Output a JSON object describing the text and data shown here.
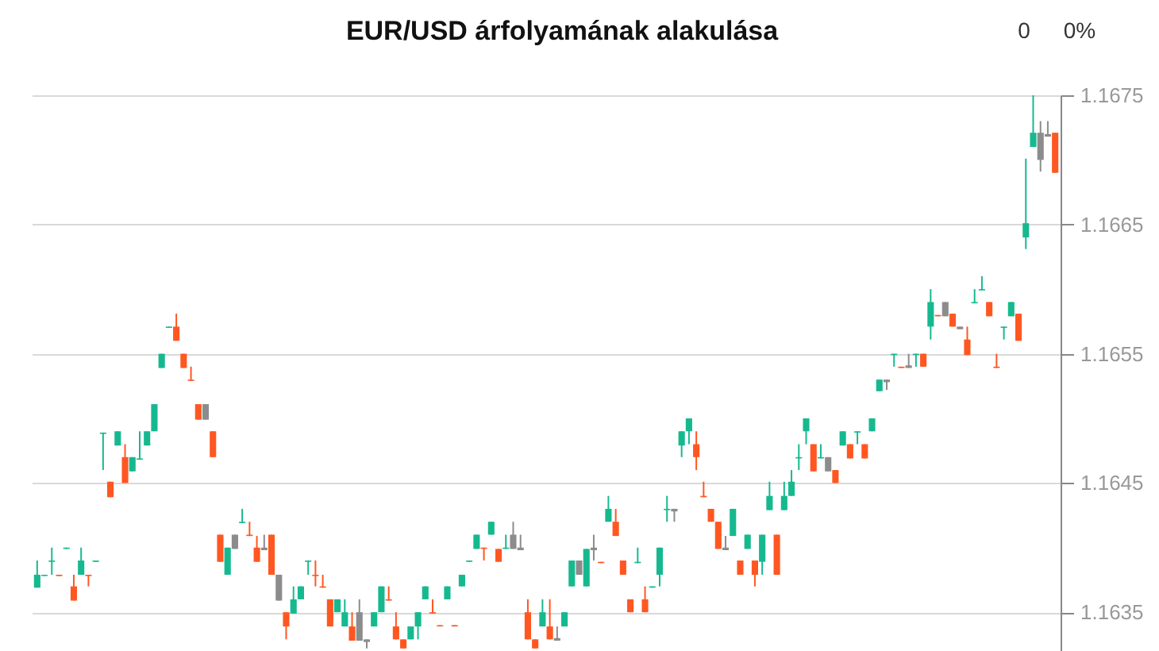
{
  "chart_data": {
    "type": "candlestick",
    "title": "EUR/USD árfolyamának alakulása",
    "annotations": [
      "0",
      "0%"
    ],
    "categories": [
      null,
      null,
      null,
      null,
      null,
      null,
      null,
      null,
      null,
      null,
      null,
      null,
      null,
      null,
      null,
      null,
      null,
      null,
      null,
      null,
      null,
      null,
      null,
      null,
      null,
      null,
      null,
      null,
      null,
      null,
      null,
      null,
      null,
      null,
      null,
      null,
      null,
      null,
      null,
      null,
      null,
      null,
      null,
      null,
      null,
      null,
      null,
      null,
      null,
      null,
      null,
      null,
      null,
      null,
      null,
      null,
      null,
      null,
      null,
      null,
      null,
      null,
      null,
      null,
      null,
      null,
      null,
      null,
      null,
      null,
      null,
      null,
      null,
      null,
      null,
      null,
      null,
      null,
      null,
      null,
      null,
      null,
      null,
      null,
      null,
      null,
      null,
      null,
      null,
      null,
      null,
      null,
      null,
      null,
      null,
      null,
      null,
      null,
      null,
      null,
      null,
      null,
      null,
      null,
      null,
      null,
      null,
      null,
      null,
      null,
      null,
      null,
      null,
      null,
      null,
      null,
      null,
      null,
      null,
      null,
      null,
      null,
      null,
      null,
      null,
      null,
      null,
      null,
      null,
      null,
      null,
      null,
      null,
      null,
      null,
      null,
      null,
      null,
      null,
      null
    ],
    "ohlc": [
      [
        1.16369,
        1.1639,
        1.16369,
        1.16379
      ],
      [
        1.16378,
        1.16379,
        1.16378,
        1.16379
      ],
      [
        1.16389,
        1.164,
        1.16379,
        1.1639
      ],
      [
        1.16379,
        1.16379,
        1.16378,
        1.16378
      ],
      [
        1.16399,
        1.164,
        1.16399,
        1.164
      ],
      [
        1.1637,
        1.16379,
        1.16359,
        1.16359
      ],
      [
        1.16379,
        1.164,
        1.16379,
        1.1639
      ],
      [
        1.16379,
        1.16379,
        1.1637,
        1.16378
      ],
      [
        1.16389,
        1.1639,
        1.16389,
        1.1639
      ],
      [
        1.16488,
        1.16489,
        1.1646,
        1.16489
      ],
      [
        1.16451,
        1.16451,
        1.16439,
        1.16439
      ],
      [
        1.16479,
        1.1649,
        1.16479,
        1.1649
      ],
      [
        1.1647,
        1.1648,
        1.1645,
        1.1645
      ],
      [
        1.16459,
        1.1647,
        1.16459,
        1.1647
      ],
      [
        1.16468,
        1.1649,
        1.16468,
        1.16469
      ],
      [
        1.16479,
        1.1649,
        1.16479,
        1.1649
      ],
      [
        1.1649,
        1.16511,
        1.1649,
        1.16511
      ],
      [
        1.16539,
        1.1655,
        1.16539,
        1.1655
      ],
      [
        1.1657,
        1.16571,
        1.1657,
        1.16571
      ],
      [
        1.16571,
        1.16581,
        1.1656,
        1.1656
      ],
      [
        1.1655,
        1.1655,
        1.16539,
        1.16539
      ],
      [
        1.1653,
        1.1654,
        1.16529,
        1.16529
      ],
      [
        1.16511,
        1.16511,
        1.16499,
        1.16499
      ],
      [
        1.16511,
        1.16511,
        1.16499,
        1.16499
      ],
      [
        1.1649,
        1.1649,
        1.1647,
        1.1647
      ],
      [
        1.1641,
        1.1641,
        1.16389,
        1.16389
      ],
      [
        1.16379,
        1.164,
        1.16379,
        1.164
      ],
      [
        1.1641,
        1.1641,
        1.16399,
        1.16399
      ],
      [
        1.16419,
        1.1643,
        1.16419,
        1.1642
      ],
      [
        1.1641,
        1.1642,
        1.16409,
        1.16409
      ],
      [
        1.164,
        1.16409,
        1.16389,
        1.16389
      ],
      [
        1.164,
        1.1641,
        1.16398,
        1.16398
      ],
      [
        1.1641,
        1.1641,
        1.16379,
        1.16379
      ],
      [
        1.16379,
        1.16379,
        1.16359,
        1.16359
      ],
      [
        1.1635,
        1.1635,
        1.16329,
        1.16339
      ],
      [
        1.16349,
        1.1637,
        1.16349,
        1.1636
      ],
      [
        1.1636,
        1.1637,
        1.1636,
        1.1637
      ],
      [
        1.16389,
        1.1639,
        1.16379,
        1.1639
      ],
      [
        1.16379,
        1.1639,
        1.1637,
        1.16378
      ],
      [
        1.1637,
        1.16379,
        1.16369,
        1.16369
      ],
      [
        1.1636,
        1.1636,
        1.16339,
        1.16339
      ],
      [
        1.1635,
        1.1636,
        1.1635,
        1.1636
      ],
      [
        1.16339,
        1.1636,
        1.16339,
        1.1635
      ],
      [
        1.16339,
        1.1635,
        1.16328,
        1.16328
      ],
      [
        1.1635,
        1.1636,
        1.16328,
        1.16328
      ],
      [
        1.16329,
        1.16329,
        1.16322,
        1.16327
      ],
      [
        1.16339,
        1.1635,
        1.16339,
        1.1635
      ],
      [
        1.1635,
        1.1637,
        1.1635,
        1.1637
      ],
      [
        1.1636,
        1.1637,
        1.16359,
        1.16359
      ],
      [
        1.16339,
        1.1635,
        1.16329,
        1.16329
      ],
      [
        1.16329,
        1.16329,
        1.16322,
        1.16322
      ],
      [
        1.16329,
        1.16339,
        1.16329,
        1.16339
      ],
      [
        1.16339,
        1.1635,
        1.16329,
        1.1635
      ],
      [
        1.1636,
        1.1637,
        1.1636,
        1.1637
      ],
      [
        1.1635,
        1.1636,
        1.16349,
        1.16349
      ],
      [
        1.1634,
        1.1634,
        1.16339,
        1.16339
      ],
      [
        1.1636,
        1.1637,
        1.1636,
        1.1637
      ],
      [
        1.1634,
        1.1634,
        1.16339,
        1.16339
      ],
      [
        1.1637,
        1.16379,
        1.1637,
        1.16379
      ],
      [
        1.16389,
        1.1639,
        1.16389,
        1.1639
      ],
      [
        1.16399,
        1.1641,
        1.16399,
        1.1641
      ],
      [
        1.164,
        1.164,
        1.1639,
        1.16399
      ],
      [
        1.1641,
        1.1642,
        1.1641,
        1.1642
      ],
      [
        1.16399,
        1.16399,
        1.16389,
        1.16389
      ],
      [
        1.16399,
        1.1641,
        1.16399,
        1.164
      ],
      [
        1.1641,
        1.1642,
        1.16399,
        1.16399
      ],
      [
        1.164,
        1.1641,
        1.16398,
        1.16398
      ],
      [
        1.1635,
        1.1636,
        1.16329,
        1.16329
      ],
      [
        1.16329,
        1.16329,
        1.16322,
        1.16322
      ],
      [
        1.16339,
        1.1636,
        1.16339,
        1.1635
      ],
      [
        1.16339,
        1.1636,
        1.16329,
        1.16329
      ],
      [
        1.1633,
        1.16339,
        1.16328,
        1.16328
      ],
      [
        1.16339,
        1.1635,
        1.16339,
        1.1635
      ],
      [
        1.1637,
        1.1639,
        1.1637,
        1.1639
      ],
      [
        1.1639,
        1.1639,
        1.16379,
        1.16379
      ],
      [
        1.1637,
        1.16399,
        1.1637,
        1.16399
      ],
      [
        1.164,
        1.1641,
        1.1639,
        1.16398
      ],
      [
        1.16389,
        1.16389,
        1.16388,
        1.16388
      ],
      [
        1.1642,
        1.1644,
        1.1642,
        1.1643
      ],
      [
        1.1642,
        1.1643,
        1.16409,
        1.16409
      ],
      [
        1.1639,
        1.1639,
        1.16379,
        1.16379
      ],
      [
        1.1636,
        1.1636,
        1.1635,
        1.1635
      ],
      [
        1.16388,
        1.164,
        1.16388,
        1.16389
      ],
      [
        1.1636,
        1.1637,
        1.1635,
        1.1635
      ],
      [
        1.16369,
        1.1637,
        1.16369,
        1.1637
      ],
      [
        1.16379,
        1.164,
        1.1637,
        1.164
      ],
      [
        1.16429,
        1.1644,
        1.1642,
        1.1643
      ],
      [
        1.1643,
        1.1643,
        1.1642,
        1.16428
      ],
      [
        1.16479,
        1.1649,
        1.1647,
        1.1649
      ],
      [
        1.1649,
        1.165,
        1.1648,
        1.165
      ],
      [
        1.1648,
        1.1649,
        1.1646,
        1.1647
      ],
      [
        1.1644,
        1.16451,
        1.16439,
        1.16439
      ],
      [
        1.1643,
        1.1643,
        1.1642,
        1.1642
      ],
      [
        1.1642,
        1.1642,
        1.16399,
        1.16399
      ],
      [
        1.164,
        1.16409,
        1.16398,
        1.16398
      ],
      [
        1.16409,
        1.1643,
        1.16409,
        1.1643
      ],
      [
        1.1639,
        1.1639,
        1.16379,
        1.16379
      ],
      [
        1.16399,
        1.1641,
        1.16399,
        1.1641
      ],
      [
        1.1639,
        1.1639,
        1.1637,
        1.16379
      ],
      [
        1.16389,
        1.1641,
        1.16379,
        1.1641
      ],
      [
        1.16429,
        1.16451,
        1.16429,
        1.1644
      ],
      [
        1.1641,
        1.1641,
        1.16379,
        1.16379
      ],
      [
        1.16429,
        1.16451,
        1.16429,
        1.1644
      ],
      [
        1.1644,
        1.1646,
        1.1644,
        1.16451
      ],
      [
        1.16469,
        1.1648,
        1.1646,
        1.1647
      ],
      [
        1.1649,
        1.165,
        1.1648,
        1.165
      ],
      [
        1.1648,
        1.1648,
        1.16459,
        1.16459
      ],
      [
        1.16469,
        1.1648,
        1.16469,
        1.1647
      ],
      [
        1.1647,
        1.1647,
        1.16459,
        1.16459
      ],
      [
        1.1646,
        1.1646,
        1.1645,
        1.1645
      ],
      [
        1.16479,
        1.1649,
        1.16479,
        1.1649
      ],
      [
        1.1648,
        1.1648,
        1.16469,
        1.16469
      ],
      [
        1.16489,
        1.1649,
        1.1648,
        1.1649
      ],
      [
        1.1648,
        1.1648,
        1.16469,
        1.16469
      ],
      [
        1.1649,
        1.165,
        1.1649,
        1.165
      ],
      [
        1.16521,
        1.1653,
        1.16521,
        1.1653
      ],
      [
        1.1653,
        1.1653,
        1.16522,
        1.16528
      ],
      [
        1.16549,
        1.1655,
        1.1654,
        1.1655
      ],
      [
        1.1654,
        1.1654,
        1.16539,
        1.16539
      ],
      [
        1.16541,
        1.1655,
        1.16539,
        1.16539
      ],
      [
        1.16549,
        1.1655,
        1.1654,
        1.1655
      ],
      [
        1.1655,
        1.1655,
        1.1654,
        1.1654
      ],
      [
        1.16571,
        1.166,
        1.16561,
        1.1659
      ],
      [
        1.1658,
        1.1658,
        1.16579,
        1.16579
      ],
      [
        1.1659,
        1.1659,
        1.16579,
        1.16579
      ],
      [
        1.16581,
        1.16581,
        1.16571,
        1.16571
      ],
      [
        1.16571,
        1.16571,
        1.16569,
        1.16569
      ],
      [
        1.16561,
        1.16571,
        1.16549,
        1.16549
      ],
      [
        1.16589,
        1.166,
        1.16589,
        1.1659
      ],
      [
        1.16599,
        1.1661,
        1.16599,
        1.166
      ],
      [
        1.1659,
        1.1659,
        1.16579,
        1.16579
      ],
      [
        1.1654,
        1.1655,
        1.16539,
        1.16539
      ],
      [
        1.1657,
        1.16571,
        1.16561,
        1.16571
      ],
      [
        1.16579,
        1.1659,
        1.16579,
        1.1659
      ],
      [
        1.16581,
        1.16581,
        1.1656,
        1.1656
      ],
      [
        1.1664,
        1.16701,
        1.16631,
        1.16651
      ],
      [
        1.1671,
        1.1675,
        1.1671,
        1.16721
      ],
      [
        1.16721,
        1.1673,
        1.16691,
        1.167
      ],
      [
        1.1672,
        1.1673,
        1.16718,
        1.16718
      ],
      [
        1.16721,
        1.16721,
        1.1669,
        1.1669
      ]
    ],
    "colors": [
      "#16b98f",
      "#16b98f",
      "#16b98f",
      "#ff5722",
      "#16b98f",
      "#ff5722",
      "#16b98f",
      "#ff5722",
      "#16b98f",
      "#16b98f",
      "#ff5722",
      "#16b98f",
      "#ff5722",
      "#16b98f",
      "#16b98f",
      "#16b98f",
      "#16b98f",
      "#16b98f",
      "#16b98f",
      "#ff5722",
      "#ff5722",
      "#ff5722",
      "#ff5722",
      "#8c8c8c",
      "#ff5722",
      "#ff5722",
      "#16b98f",
      "#8c8c8c",
      "#16b98f",
      "#ff5722",
      "#ff5722",
      "#8c8c8c",
      "#ff5722",
      "#8c8c8c",
      "#ff5722",
      "#16b98f",
      "#16b98f",
      "#16b98f",
      "#ff5722",
      "#ff5722",
      "#ff5722",
      "#16b98f",
      "#16b98f",
      "#ff5722",
      "#8c8c8c",
      "#8c8c8c",
      "#16b98f",
      "#16b98f",
      "#ff5722",
      "#ff5722",
      "#ff5722",
      "#16b98f",
      "#16b98f",
      "#16b98f",
      "#ff5722",
      "#ff5722",
      "#16b98f",
      "#ff5722",
      "#16b98f",
      "#16b98f",
      "#16b98f",
      "#ff5722",
      "#16b98f",
      "#ff5722",
      "#16b98f",
      "#8c8c8c",
      "#8c8c8c",
      "#ff5722",
      "#ff5722",
      "#16b98f",
      "#ff5722",
      "#8c8c8c",
      "#16b98f",
      "#16b98f",
      "#8c8c8c",
      "#16b98f",
      "#8c8c8c",
      "#ff5722",
      "#16b98f",
      "#ff5722",
      "#ff5722",
      "#ff5722",
      "#16b98f",
      "#ff5722",
      "#16b98f",
      "#16b98f",
      "#16b98f",
      "#8c8c8c",
      "#16b98f",
      "#16b98f",
      "#ff5722",
      "#ff5722",
      "#ff5722",
      "#ff5722",
      "#8c8c8c",
      "#16b98f",
      "#ff5722",
      "#16b98f",
      "#ff5722",
      "#16b98f",
      "#16b98f",
      "#ff5722",
      "#16b98f",
      "#16b98f",
      "#16b98f",
      "#16b98f",
      "#ff5722",
      "#16b98f",
      "#8c8c8c",
      "#ff5722",
      "#16b98f",
      "#ff5722",
      "#16b98f",
      "#ff5722",
      "#16b98f",
      "#16b98f",
      "#8c8c8c",
      "#16b98f",
      "#ff5722",
      "#8c8c8c",
      "#16b98f",
      "#ff5722",
      "#16b98f",
      "#ff5722",
      "#8c8c8c",
      "#ff5722",
      "#8c8c8c",
      "#ff5722",
      "#16b98f",
      "#16b98f",
      "#ff5722",
      "#ff5722",
      "#16b98f",
      "#16b98f",
      "#ff5722",
      "#16b98f",
      "#16b98f",
      "#8c8c8c",
      "#8c8c8c",
      "#ff5722"
    ],
    "ylim": [
      1.1632,
      1.1675
    ],
    "yticks": [
      1.1635,
      1.1645,
      1.1655,
      1.1665,
      1.1675
    ],
    "grid": "y"
  }
}
